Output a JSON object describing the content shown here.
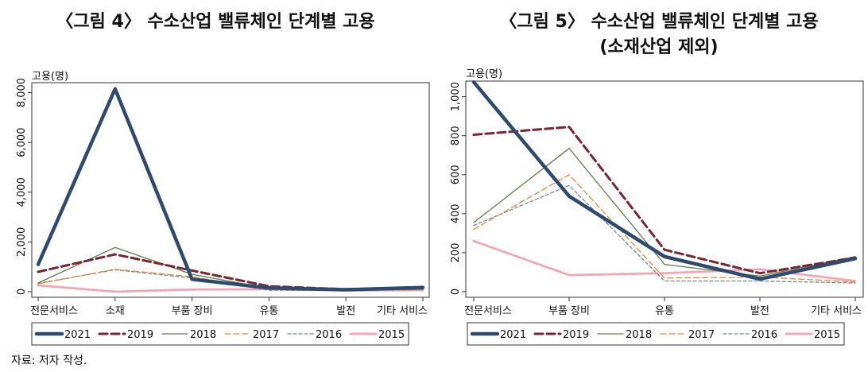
{
  "source": "자료: 저자 작성.",
  "chart_data": [
    {
      "type": "line",
      "title": "〈그림 4〉 수소산업 밸류체인 단계별 고용",
      "subtitle": "",
      "ylabel": "고용(명)",
      "xlabel": "",
      "categories": [
        "전문서비스",
        "소재",
        "부품 장비",
        "유통",
        "발전",
        "기타 서비스"
      ],
      "ylim": [
        0,
        8400
      ],
      "yticks": [
        0,
        2000,
        4000,
        6000,
        8000
      ],
      "ytick_labels": [
        "0",
        "2,000",
        "4,000",
        "6,000",
        "8,000"
      ],
      "legend_position": "bottom",
      "series": [
        {
          "name": "2021",
          "color": "#2e4a6e",
          "width": 4.5,
          "dash": "",
          "values": [
            1100,
            8150,
            500,
            150,
            80,
            170
          ]
        },
        {
          "name": "2019",
          "color": "#7b2530",
          "width": 3,
          "dash": "10,5",
          "values": [
            800,
            1500,
            850,
            220,
            100,
            160
          ]
        },
        {
          "name": "2018",
          "color": "#5d7f4c",
          "width": 1.3,
          "dash": "",
          "values": [
            350,
            1780,
            700,
            130,
            70,
            100
          ]
        },
        {
          "name": "2017",
          "color": "#e48a3f",
          "width": 1.3,
          "dash": "7,4",
          "values": [
            320,
            900,
            600,
            80,
            60,
            90
          ]
        },
        {
          "name": "2016",
          "color": "#6f8a94",
          "width": 1.3,
          "dash": "4,3",
          "values": [
            340,
            880,
            550,
            60,
            50,
            80
          ]
        },
        {
          "name": "2015",
          "color": "#f3a6b2",
          "width": 3,
          "dash": "1,2.5",
          "values": [
            260,
            0,
            90,
            100,
            50,
            60
          ]
        }
      ]
    },
    {
      "type": "line",
      "title": "〈그림 5〉 수소산업 밸류체인 단계별 고용",
      "subtitle": "(소재산업 제외)",
      "ylabel": "고용(명)",
      "xlabel": "",
      "categories": [
        "전문서비스",
        "부품 장비",
        "유통",
        "발전",
        "기타 서비스"
      ],
      "ylim": [
        0,
        1080
      ],
      "yticks": [
        0,
        200,
        400,
        600,
        800,
        1000
      ],
      "ytick_labels": [
        "0",
        "200",
        "400",
        "600",
        "800",
        "1,000"
      ],
      "legend_position": "bottom",
      "series": [
        {
          "name": "2021",
          "color": "#2e4a6e",
          "width": 4.5,
          "dash": "",
          "values": [
            1075,
            490,
            180,
            65,
            170
          ]
        },
        {
          "name": "2019",
          "color": "#7b2530",
          "width": 3,
          "dash": "10,5",
          "values": [
            805,
            845,
            215,
            95,
            175
          ]
        },
        {
          "name": "2018",
          "color": "#5d7f4c",
          "width": 1.3,
          "dash": "",
          "values": [
            355,
            735,
            140,
            80,
            180
          ]
        },
        {
          "name": "2017",
          "color": "#e48a3f",
          "width": 1.3,
          "dash": "7,4",
          "values": [
            320,
            600,
            70,
            75,
            50
          ]
        },
        {
          "name": "2016",
          "color": "#6f8a94",
          "width": 1.3,
          "dash": "4,3",
          "values": [
            340,
            545,
            55,
            55,
            45
          ]
        },
        {
          "name": "2015",
          "color": "#f3a6b2",
          "width": 3,
          "dash": "1,2.5",
          "values": [
            260,
            85,
            95,
            115,
            55
          ]
        }
      ]
    }
  ]
}
